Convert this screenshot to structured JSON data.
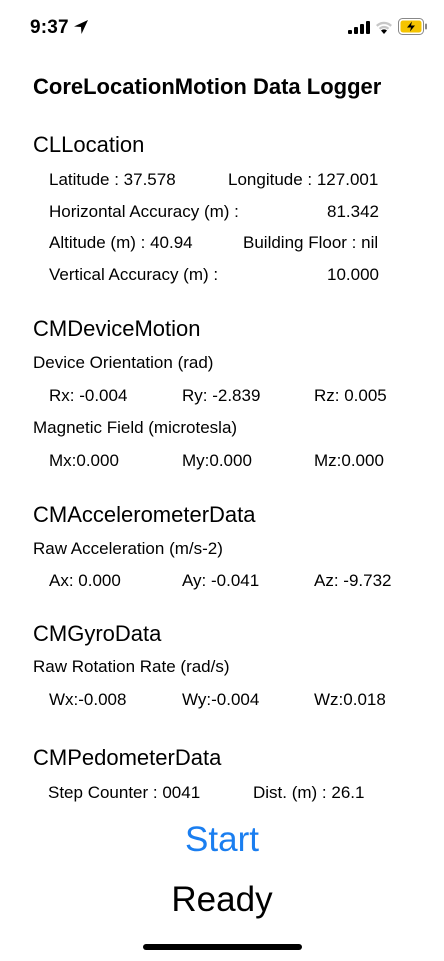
{
  "status": {
    "time": "9:37"
  },
  "app": {
    "title": "CoreLocationMotion Data Logger"
  },
  "cllocation": {
    "header": "CLLocation",
    "latitude": "Latitude : 37.578",
    "longitude": "Longitude : 127.001",
    "h_acc_label": "Horizontal Accuracy (m) :",
    "h_acc_value": "81.342",
    "altitude": "Altitude (m) : 40.94",
    "floor": "Building Floor : nil",
    "v_acc_label": "Vertical Accuracy (m) :",
    "v_acc_value": "10.000"
  },
  "devicemotion": {
    "header": "CMDeviceMotion",
    "orientation_label": "Device Orientation (rad)",
    "rx": "Rx: -0.004",
    "ry": "Ry: -2.839",
    "rz": "Rz: 0.005",
    "magnetic_label": "Magnetic Field (microtesla)",
    "mx": "Mx:0.000",
    "my": "My:0.000",
    "mz": "Mz:0.000"
  },
  "accelerometer": {
    "header": "CMAccelerometerData",
    "label": "Raw Acceleration (m/s-2)",
    "ax": "Ax: 0.000",
    "ay": "Ay: -0.041",
    "az": "Az: -9.732"
  },
  "gyro": {
    "header": "CMGyroData",
    "label": "Raw Rotation Rate (rad/s)",
    "wx": "Wx:-0.008",
    "wy": "Wy:-0.004",
    "wz": "Wz:0.018"
  },
  "pedometer": {
    "header": "CMPedometerData",
    "steps": "Step Counter : 0041",
    "distance": "Dist. (m) : 26.1"
  },
  "controls": {
    "start_label": "Start",
    "state_label": "Ready"
  },
  "colors": {
    "accent": "#1a7ef0",
    "battery": "#f5c400"
  },
  "icons": [
    "location-arrow-icon",
    "cellular-signal-icon",
    "wifi-icon",
    "battery-charging-icon"
  ]
}
